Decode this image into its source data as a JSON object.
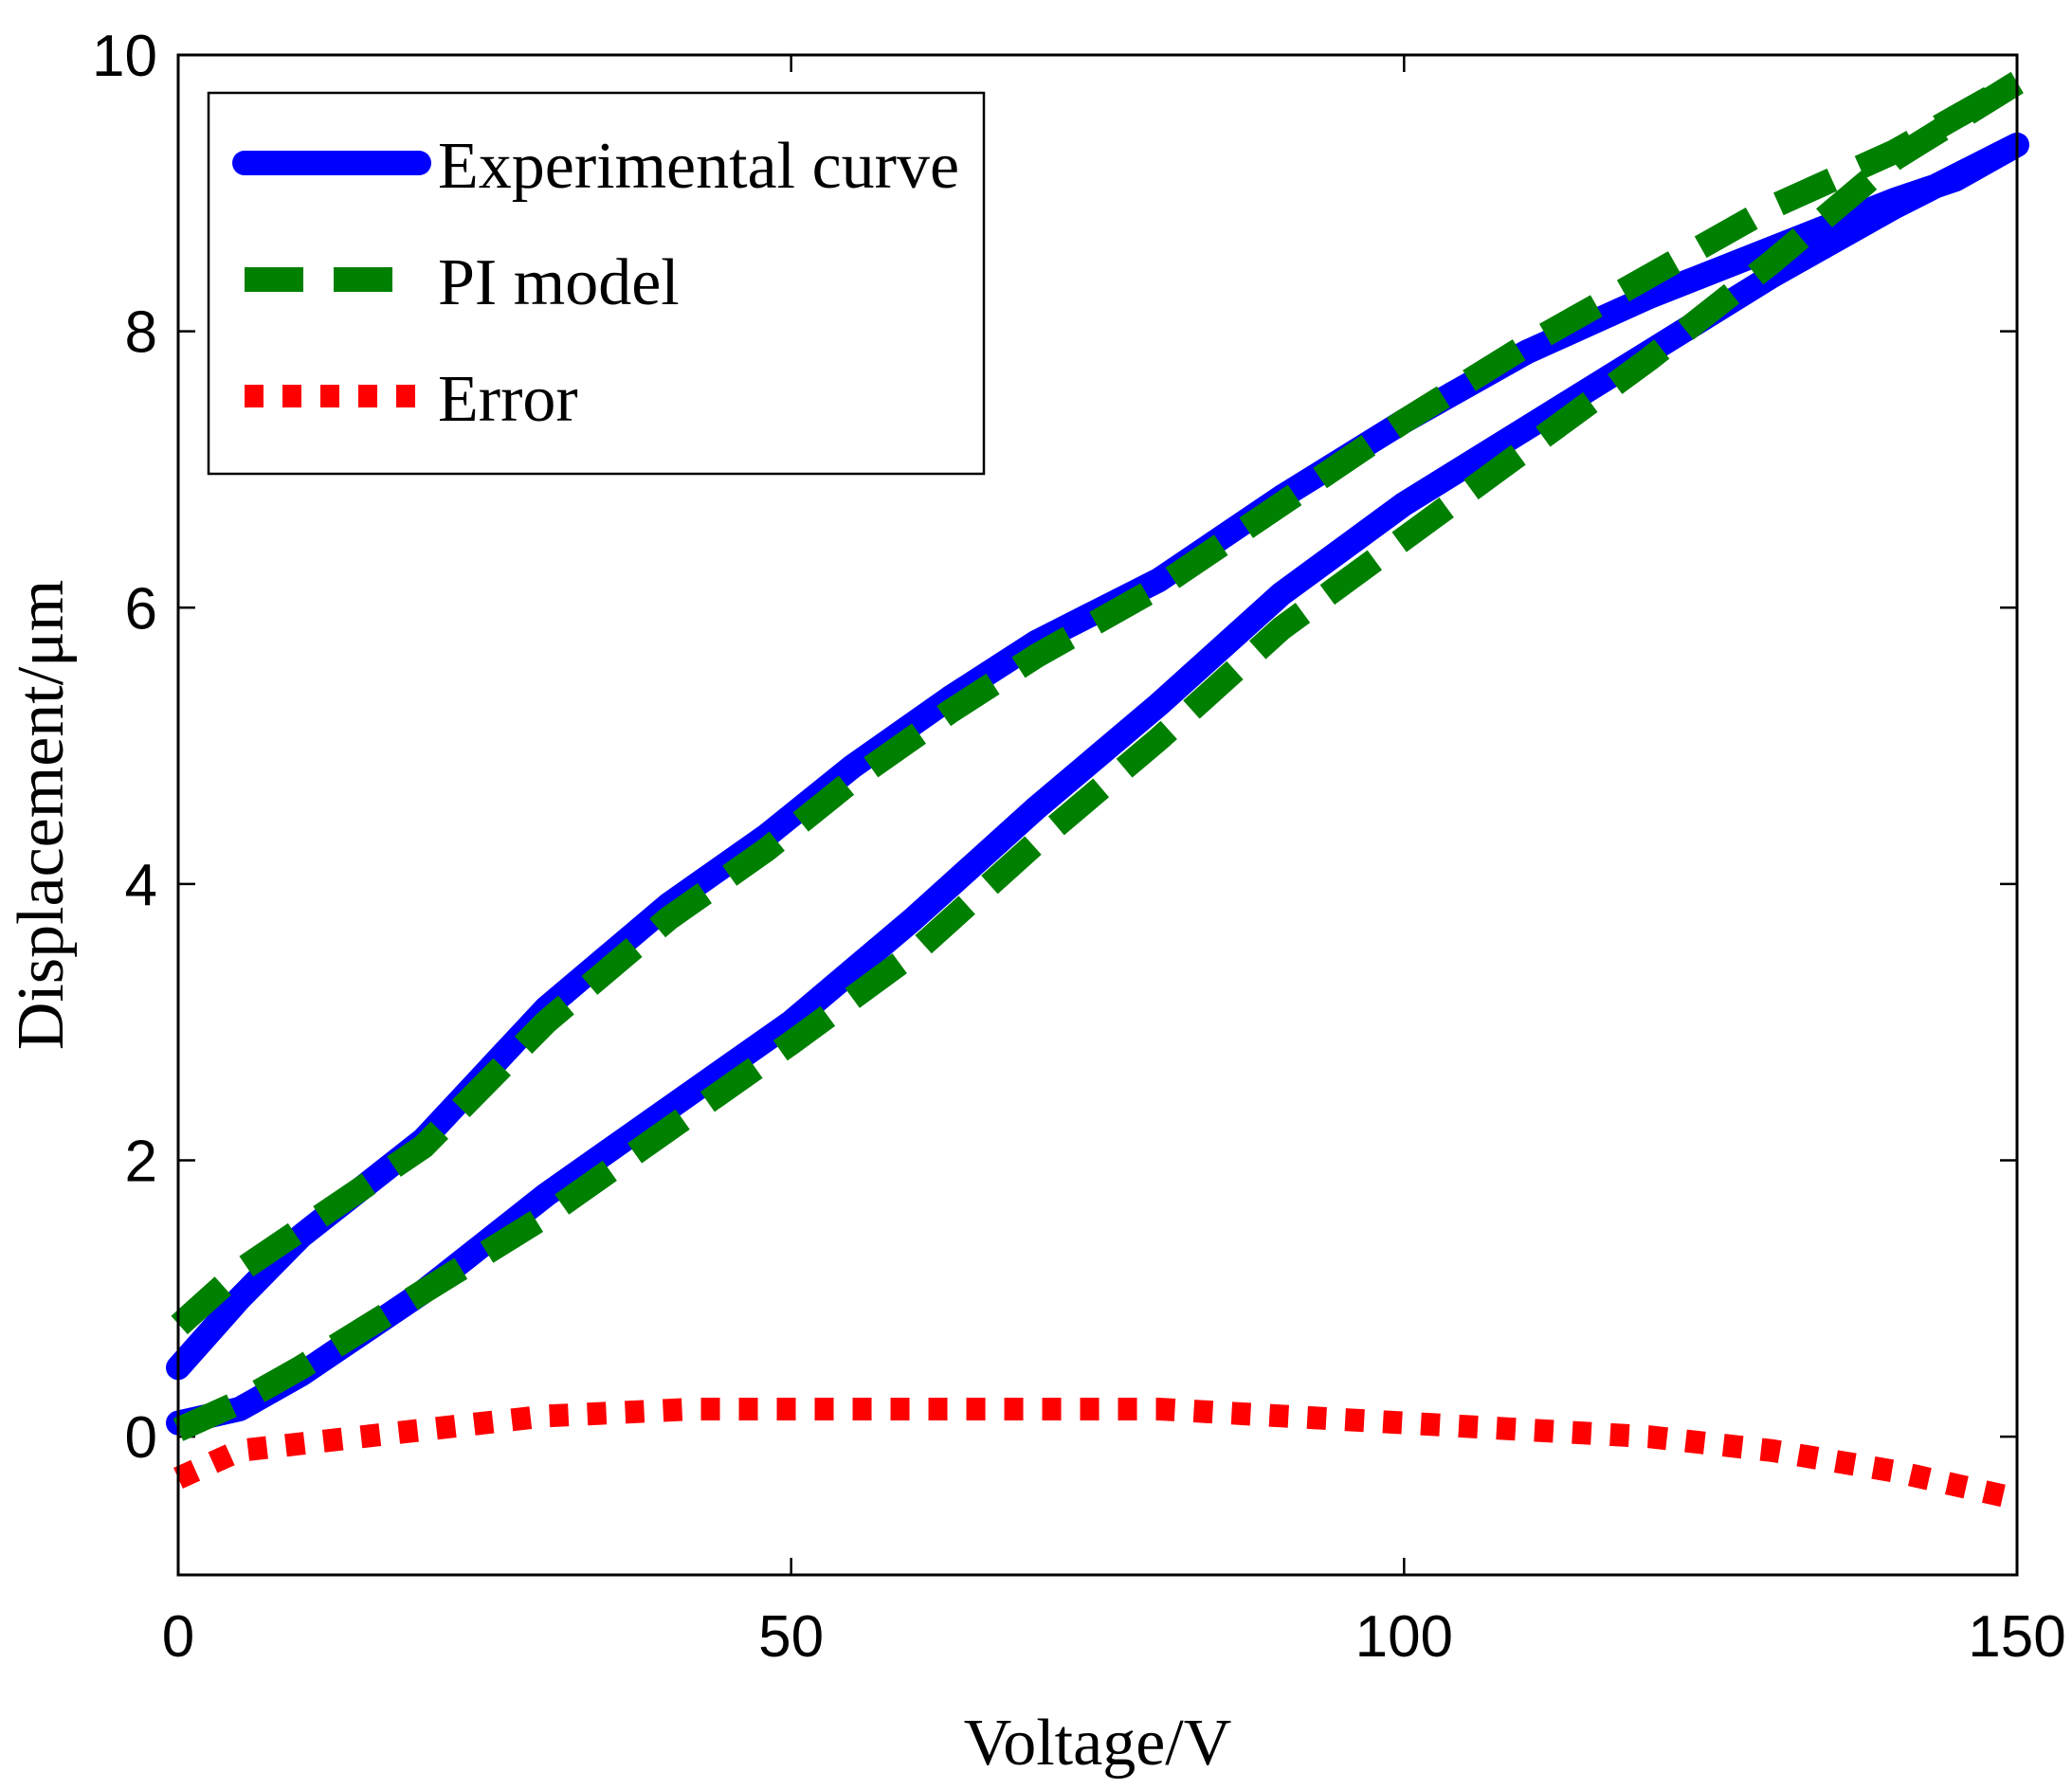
{
  "chart_data": {
    "type": "line",
    "title": "",
    "xlabel": "Voltage/V",
    "ylabel": "Displacement/μm",
    "xlim": [
      0,
      150
    ],
    "ylim": [
      -1,
      10
    ],
    "xticks": [
      0,
      50,
      100,
      150
    ],
    "xtick_labels": [
      "0",
      "50",
      "100",
      "150"
    ],
    "yticks": [
      0,
      2,
      4,
      6,
      8,
      10
    ],
    "ytick_labels": [
      "0",
      "2",
      "4",
      "6",
      "8",
      "10"
    ],
    "grid": false,
    "legend_position": "top-left",
    "series": [
      {
        "name": "Experimental curve",
        "color": "#0000ff",
        "style": "solid",
        "x": [
          0,
          5,
          10,
          20,
          30,
          42,
          50,
          60,
          70,
          80,
          90,
          100,
          110,
          120,
          130,
          140,
          150,
          145,
          140,
          130,
          120,
          110,
          100,
          90,
          80,
          70,
          63,
          55,
          48,
          40,
          30,
          20,
          10,
          5,
          0
        ],
        "y": [
          0.1,
          0.2,
          0.45,
          1.05,
          1.75,
          2.5,
          3.0,
          3.75,
          4.55,
          5.3,
          6.1,
          6.75,
          7.3,
          7.85,
          8.4,
          8.9,
          9.35,
          9.1,
          8.95,
          8.6,
          8.25,
          7.85,
          7.35,
          6.8,
          6.2,
          5.75,
          5.35,
          4.85,
          4.35,
          3.85,
          3.1,
          2.15,
          1.45,
          1.0,
          0.5
        ]
      },
      {
        "name": "PI model",
        "color": "#008000",
        "style": "dashed",
        "x": [
          0,
          5,
          10,
          20,
          30,
          42,
          50,
          60,
          70,
          80,
          90,
          100,
          110,
          120,
          130,
          140,
          150,
          145,
          140,
          130,
          120,
          110,
          100,
          90,
          80,
          70,
          63,
          55,
          48,
          40,
          30,
          20,
          10,
          5,
          0
        ],
        "y": [
          0.05,
          0.25,
          0.5,
          1.05,
          1.6,
          2.35,
          2.85,
          3.5,
          4.3,
          5.05,
          5.85,
          6.5,
          7.15,
          7.8,
          8.5,
          9.25,
          9.8,
          9.55,
          9.3,
          8.9,
          8.4,
          7.9,
          7.35,
          6.75,
          6.15,
          5.65,
          5.25,
          4.75,
          4.25,
          3.75,
          3.0,
          2.1,
          1.5,
          1.2,
          0.8
        ]
      },
      {
        "name": "Error",
        "color": "#ff0000",
        "style": "dotted",
        "x": [
          0,
          5,
          10,
          20,
          30,
          42,
          50,
          60,
          70,
          80,
          90,
          100,
          110,
          120,
          130,
          140,
          150
        ],
        "y": [
          -0.3,
          -0.1,
          -0.05,
          0.05,
          0.15,
          0.2,
          0.2,
          0.2,
          0.2,
          0.2,
          0.15,
          0.1,
          0.05,
          0.0,
          -0.1,
          -0.25,
          -0.45
        ]
      }
    ]
  }
}
